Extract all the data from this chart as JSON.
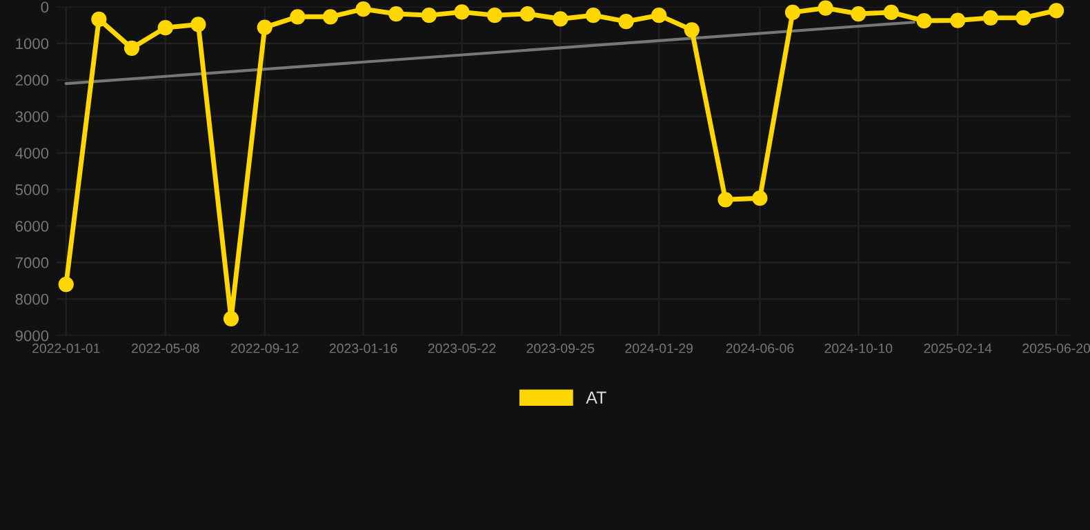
{
  "chart_data": {
    "type": "line",
    "x": [
      "2022-01-01",
      "2022-02-12",
      "2022-03-26",
      "2022-05-08",
      "2022-06-19",
      "2022-07-31",
      "2022-09-12",
      "2022-10-24",
      "2022-12-05",
      "2023-01-16",
      "2023-02-27",
      "2023-04-10",
      "2023-05-22",
      "2023-07-03",
      "2023-08-14",
      "2023-09-25",
      "2023-11-06",
      "2023-12-18",
      "2024-01-29",
      "2024-03-11",
      "2024-04-23",
      "2024-06-06",
      "2024-07-18",
      "2024-08-29",
      "2024-10-10",
      "2024-11-21",
      "2025-01-02",
      "2025-02-14",
      "2025-03-28",
      "2025-05-09",
      "2025-06-20"
    ],
    "series": [
      {
        "name": "AT",
        "color": "#ffd700",
        "marker": "circle",
        "values": [
          7600,
          340,
          1130,
          570,
          480,
          8540,
          560,
          270,
          270,
          60,
          190,
          230,
          140,
          230,
          190,
          330,
          230,
          400,
          230,
          630,
          5280,
          5240,
          150,
          30,
          190,
          150,
          380,
          370,
          300,
          300,
          100
        ]
      },
      {
        "type": "line",
        "color": "#777777",
        "marker": "none",
        "x": [
          "2022-01-01",
          "2024-12-20"
        ],
        "values": [
          2100,
          420
        ]
      }
    ],
    "xlim": [
      "2021-12-20",
      "2025-07-08"
    ],
    "xticks": [
      "2022-01-01",
      "2022-05-08",
      "2022-09-12",
      "2023-01-16",
      "2023-05-22",
      "2023-09-25",
      "2024-01-29",
      "2024-06-06",
      "2024-10-10",
      "2025-02-14",
      "2025-06-20"
    ],
    "ylim": [
      9000,
      0
    ],
    "yticks": [
      0,
      1000,
      2000,
      3000,
      4000,
      5000,
      6000,
      7000,
      8000,
      9000
    ],
    "grid": true,
    "legend": "bottom"
  }
}
